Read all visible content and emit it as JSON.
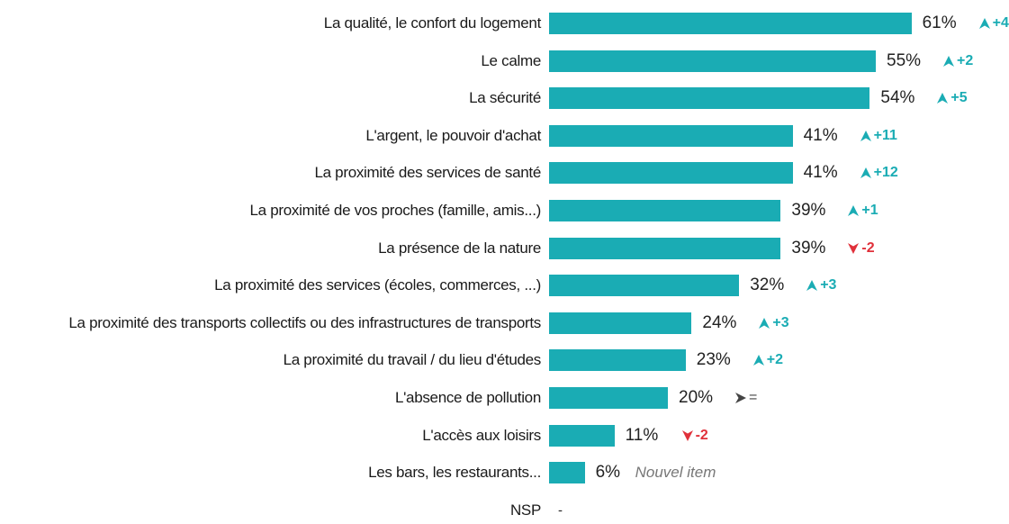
{
  "colors": {
    "bar": "#1aacb4",
    "up": "#1aacb4",
    "down": "#e0303a",
    "equal": "#444444"
  },
  "chart_data": {
    "type": "bar",
    "orientation": "horizontal",
    "unit": "%",
    "categories": [
      "La qualité, le confort du logement",
      "Le calme",
      "La sécurité",
      "L'argent, le pouvoir d'achat",
      "La proximité des services de santé",
      "La proximité de vos proches (famille, amis...)",
      "La présence de la nature",
      "La proximité des services (écoles, commerces, ...)",
      "La proximité des transports collectifs ou des infrastructures de transports",
      "La proximité du travail / du lieu d'études",
      "L'absence de pollution",
      "L'accès aux loisirs",
      "Les bars, les restaurants...",
      "NSP"
    ],
    "values": [
      61,
      55,
      54,
      41,
      41,
      39,
      39,
      32,
      24,
      23,
      20,
      11,
      6,
      null
    ],
    "value_labels": [
      "61%",
      "55%",
      "54%",
      "41%",
      "41%",
      "39%",
      "39%",
      "32%",
      "24%",
      "23%",
      "20%",
      "11%",
      "6%",
      "-"
    ],
    "changes": [
      {
        "dir": "up",
        "text": "+4"
      },
      {
        "dir": "up",
        "text": "+2"
      },
      {
        "dir": "up",
        "text": "+5"
      },
      {
        "dir": "up",
        "text": "+11"
      },
      {
        "dir": "up",
        "text": "+12"
      },
      {
        "dir": "up",
        "text": "+1"
      },
      {
        "dir": "down",
        "text": "-2"
      },
      {
        "dir": "up",
        "text": "+3"
      },
      {
        "dir": "up",
        "text": "+3"
      },
      {
        "dir": "up",
        "text": "+2"
      },
      {
        "dir": "equal",
        "text": "="
      },
      {
        "dir": "down",
        "text": "-2"
      },
      {
        "dir": "new",
        "text": "Nouvel item"
      },
      null
    ],
    "xlim": [
      0,
      100
    ],
    "grid": false,
    "legend": "none"
  }
}
